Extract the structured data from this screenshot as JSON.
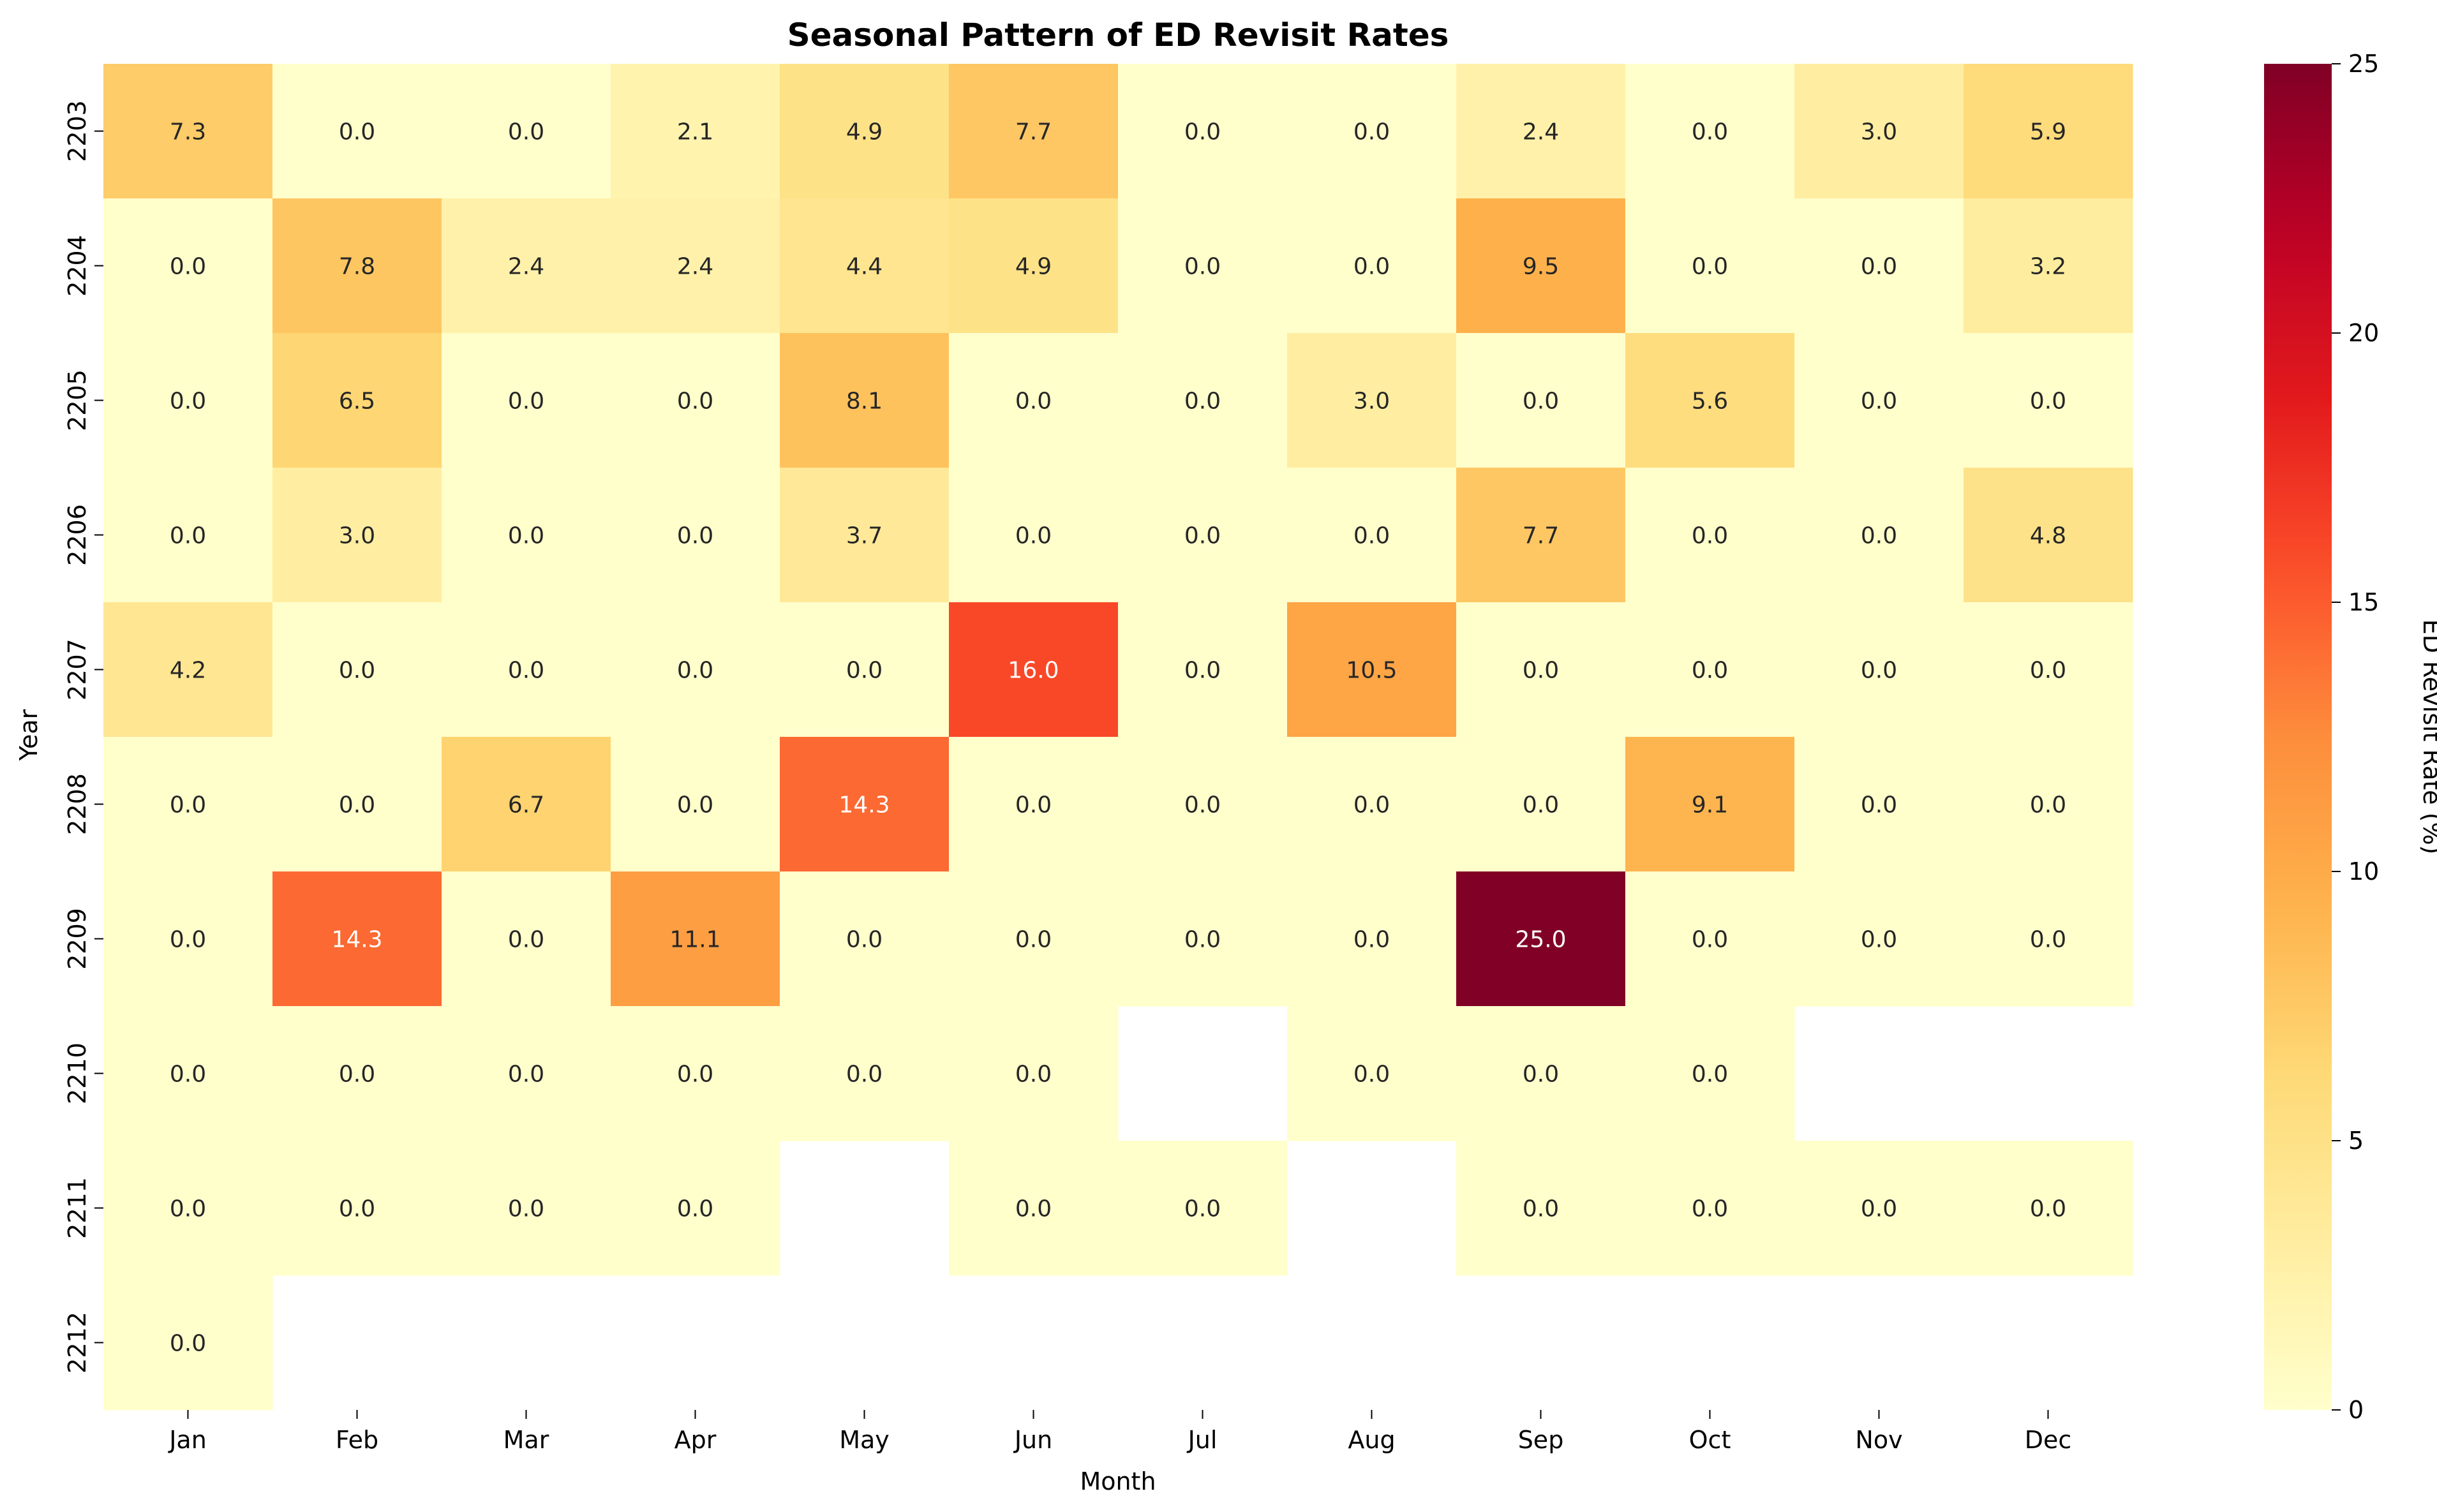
{
  "chart_data": {
    "type": "heatmap",
    "title": "Seasonal Pattern of ED Revisit Rates",
    "xlabel": "Month",
    "ylabel": "Year",
    "x_categories": [
      "Jan",
      "Feb",
      "Mar",
      "Apr",
      "May",
      "Jun",
      "Jul",
      "Aug",
      "Sep",
      "Oct",
      "Nov",
      "Dec"
    ],
    "y_categories": [
      "2203",
      "2204",
      "2205",
      "2206",
      "2207",
      "2208",
      "2209",
      "2210",
      "2211",
      "2212"
    ],
    "values": [
      [
        7.3,
        0.0,
        0.0,
        2.1,
        4.9,
        7.7,
        0.0,
        0.0,
        2.4,
        0.0,
        3.0,
        5.9
      ],
      [
        0.0,
        7.8,
        2.4,
        2.4,
        4.4,
        4.9,
        0.0,
        0.0,
        9.5,
        0.0,
        0.0,
        3.2
      ],
      [
        0.0,
        6.5,
        0.0,
        0.0,
        8.1,
        0.0,
        0.0,
        3.0,
        0.0,
        5.6,
        0.0,
        0.0
      ],
      [
        0.0,
        3.0,
        0.0,
        0.0,
        3.7,
        0.0,
        0.0,
        0.0,
        7.7,
        0.0,
        0.0,
        4.8
      ],
      [
        4.2,
        0.0,
        0.0,
        0.0,
        0.0,
        16.0,
        0.0,
        10.5,
        0.0,
        0.0,
        0.0,
        0.0
      ],
      [
        0.0,
        0.0,
        6.7,
        0.0,
        14.3,
        0.0,
        0.0,
        0.0,
        0.0,
        9.1,
        0.0,
        0.0
      ],
      [
        0.0,
        14.3,
        0.0,
        11.1,
        0.0,
        0.0,
        0.0,
        0.0,
        25.0,
        0.0,
        0.0,
        0.0
      ],
      [
        0.0,
        0.0,
        0.0,
        0.0,
        0.0,
        0.0,
        null,
        0.0,
        0.0,
        0.0,
        null,
        null
      ],
      [
        0.0,
        0.0,
        0.0,
        0.0,
        null,
        0.0,
        0.0,
        null,
        0.0,
        0.0,
        0.0,
        0.0
      ],
      [
        0.0,
        null,
        null,
        null,
        null,
        null,
        null,
        null,
        null,
        null,
        null,
        null
      ]
    ],
    "colorbar": {
      "label": "ED Revisit Rate (%)",
      "range": [
        0,
        25
      ],
      "ticks": [
        0,
        5,
        10,
        15,
        20,
        25
      ],
      "colormap": "YlOrRd"
    },
    "grid": false
  }
}
